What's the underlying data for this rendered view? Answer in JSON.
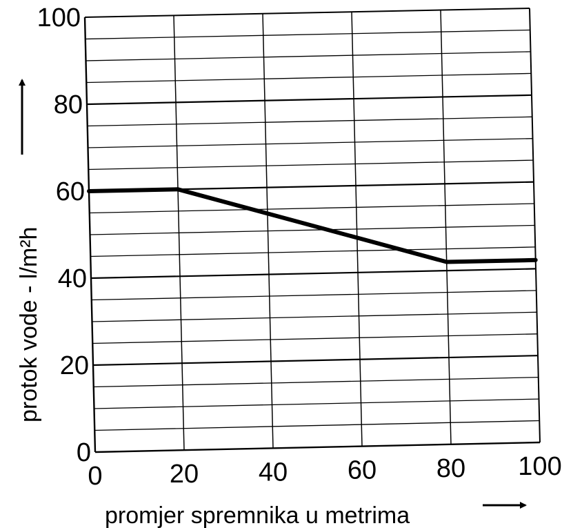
{
  "chart_data": {
    "type": "line",
    "title": "",
    "xlabel": "promjer spremnika u metrima",
    "ylabel": "protok vode - l/m²h",
    "xlim": [
      0,
      100
    ],
    "ylim": [
      0,
      100
    ],
    "x_ticks": [
      "0",
      "20",
      "40",
      "60",
      "80",
      "100"
    ],
    "y_ticks": [
      "0",
      "20",
      "40",
      "60",
      "80",
      "100"
    ],
    "grid": true,
    "series": [
      {
        "x": [
          0,
          20,
          80,
          100
        ],
        "y": [
          60,
          60,
          42,
          42
        ]
      }
    ],
    "colors": {
      "line": "#000000",
      "grid": "#000000",
      "background": "#ffffff"
    }
  }
}
